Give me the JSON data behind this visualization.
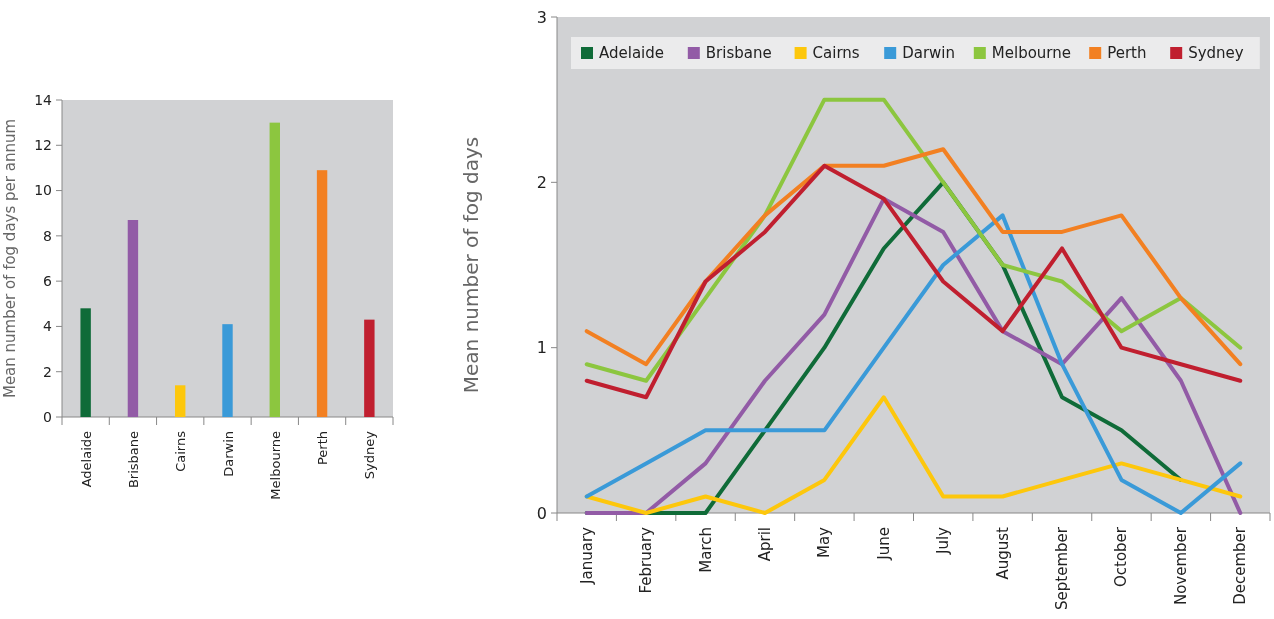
{
  "chart_data": [
    {
      "type": "bar",
      "ylabel": "Mean number of fog days per annum",
      "categories": [
        "Adelaide",
        "Brisbane",
        "Cairns",
        "Darwin",
        "Melbourne",
        "Perth",
        "Sydney"
      ],
      "values": [
        4.8,
        8.7,
        1.4,
        4.1,
        13,
        10.9,
        4.3
      ],
      "colors": [
        "#0f6b38",
        "#925ba6",
        "#fdc70c",
        "#3a9ad8",
        "#8cc63f",
        "#f28022",
        "#c01f2f"
      ],
      "ylim": [
        0,
        14
      ],
      "yticks": [
        0,
        2,
        4,
        6,
        8,
        10,
        12,
        14
      ]
    },
    {
      "type": "line",
      "ylabel": "Mean number of fog days",
      "categories": [
        "January",
        "February",
        "March",
        "April",
        "May",
        "June",
        "July",
        "August",
        "September",
        "October",
        "November",
        "December"
      ],
      "ylim": [
        0,
        3
      ],
      "yticks": [
        0,
        1,
        2,
        3
      ],
      "legend": "top",
      "series": [
        {
          "name": "Adelaide",
          "color": "#0f6b38",
          "values": [
            0,
            0,
            0,
            0.5,
            1.0,
            1.6,
            2.0,
            1.5,
            0.7,
            0.5,
            0.2,
            null
          ]
        },
        {
          "name": "Brisbane",
          "color": "#925ba6",
          "values": [
            0,
            0,
            0.3,
            0.8,
            1.2,
            1.9,
            1.7,
            1.1,
            0.9,
            1.3,
            0.8,
            0
          ]
        },
        {
          "name": "Cairns",
          "color": "#fdc70c",
          "values": [
            0.1,
            0,
            0.1,
            0,
            0.2,
            0.7,
            0.1,
            0.1,
            0.2,
            0.3,
            0.2,
            0.1
          ]
        },
        {
          "name": "Darwin",
          "color": "#3a9ad8",
          "values": [
            0.1,
            0.3,
            0.5,
            0.5,
            0.5,
            1.0,
            1.5,
            1.8,
            0.9,
            0.2,
            0,
            0.3
          ]
        },
        {
          "name": "Melbourne",
          "color": "#8cc63f",
          "values": [
            0.9,
            0.8,
            1.3,
            1.8,
            2.5,
            2.5,
            2.0,
            1.5,
            1.4,
            1.1,
            1.3,
            1.0
          ]
        },
        {
          "name": "Perth",
          "color": "#f28022",
          "values": [
            1.1,
            0.9,
            1.4,
            1.8,
            2.1,
            2.1,
            2.2,
            1.7,
            1.7,
            1.8,
            1.3,
            0.9
          ]
        },
        {
          "name": "Sydney",
          "color": "#c01f2f",
          "values": [
            0.8,
            0.7,
            1.4,
            1.7,
            2.1,
            1.9,
            1.4,
            1.1,
            1.6,
            1.0,
            0.9,
            0.8
          ]
        }
      ]
    }
  ]
}
